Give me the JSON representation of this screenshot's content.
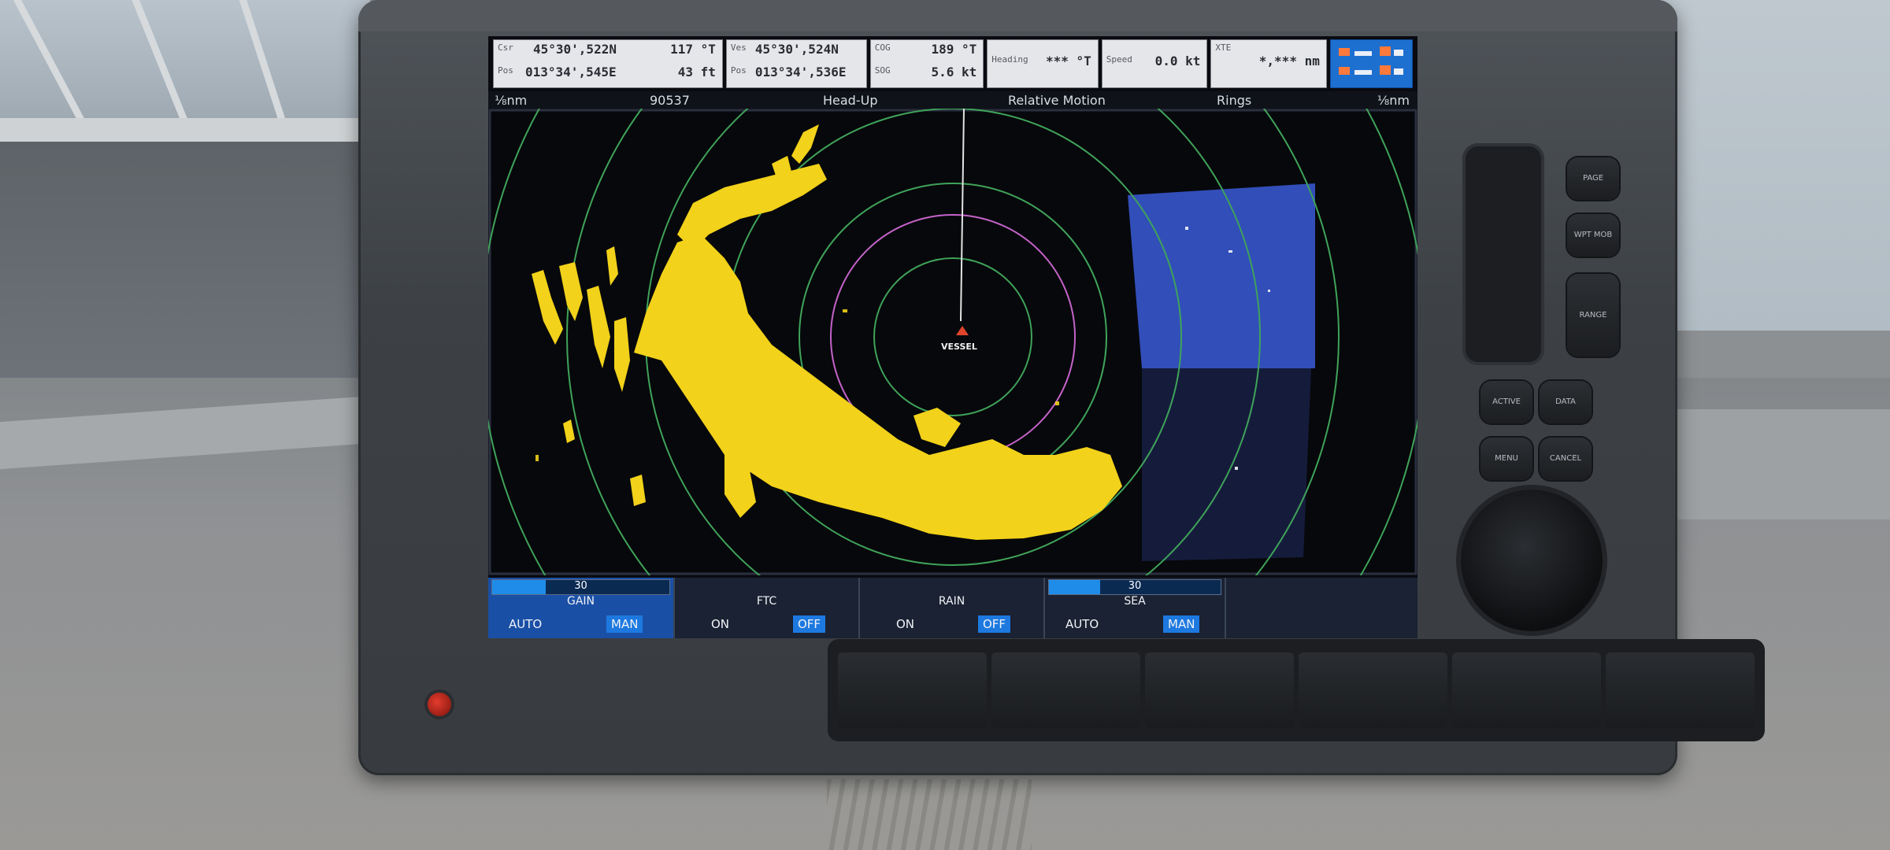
{
  "databar": {
    "csr": {
      "label": "Csr",
      "lat": "45°30',522N",
      "brg": "117 °T"
    },
    "csr_pos": {
      "label": "Pos",
      "lon": "013°34',545E",
      "dist": "43 ft"
    },
    "ves": {
      "label": "Ves",
      "lat": "45°30',524N"
    },
    "ves_pos": {
      "label": "Pos",
      "lon": "013°34',536E"
    },
    "cog": {
      "label": "COG",
      "value": "189 °T"
    },
    "sog": {
      "label": "SOG",
      "value": "5.6 kt"
    },
    "heading": {
      "label": "Heading",
      "value": "*** °T"
    },
    "speed": {
      "label": "Speed",
      "value": "0.0 kt"
    },
    "xte": {
      "label": "XTE",
      "value": "*,*** nm"
    },
    "icon_color": "#1d6fd0"
  },
  "status": {
    "range_left": "⅛nm",
    "id": "90537",
    "orientation": "Head-Up",
    "motion": "Relative Motion",
    "rings": "Rings",
    "range_right": "⅛nm"
  },
  "radar": {
    "vessel_label": "VESSEL",
    "echo_color": "#f2d21a",
    "ring_color": "#3fa35a",
    "range_ring_color": "#c463c9",
    "overlay_color": "#3a5ad8"
  },
  "controls": {
    "gain": {
      "level": 30,
      "level_fraction": 0.3,
      "title": "GAIN",
      "opt1": "AUTO",
      "opt2": "MAN",
      "selected": "MAN"
    },
    "ftc": {
      "title": "FTC",
      "opt1": "ON",
      "opt2": "OFF",
      "selected": "OFF"
    },
    "rain": {
      "title": "RAIN",
      "opt1": "ON",
      "opt2": "OFF",
      "selected": "OFF"
    },
    "sea": {
      "level": 30,
      "level_fraction": 0.3,
      "title": "SEA",
      "opt1": "AUTO",
      "opt2": "MAN",
      "selected": "MAN"
    }
  },
  "keys": {
    "page": "PAGE",
    "wpt": "WPT MOB",
    "range": "RANGE",
    "active": "ACTIVE",
    "data": "DATA",
    "menu": "MENU",
    "cancel": "CANCEL"
  }
}
